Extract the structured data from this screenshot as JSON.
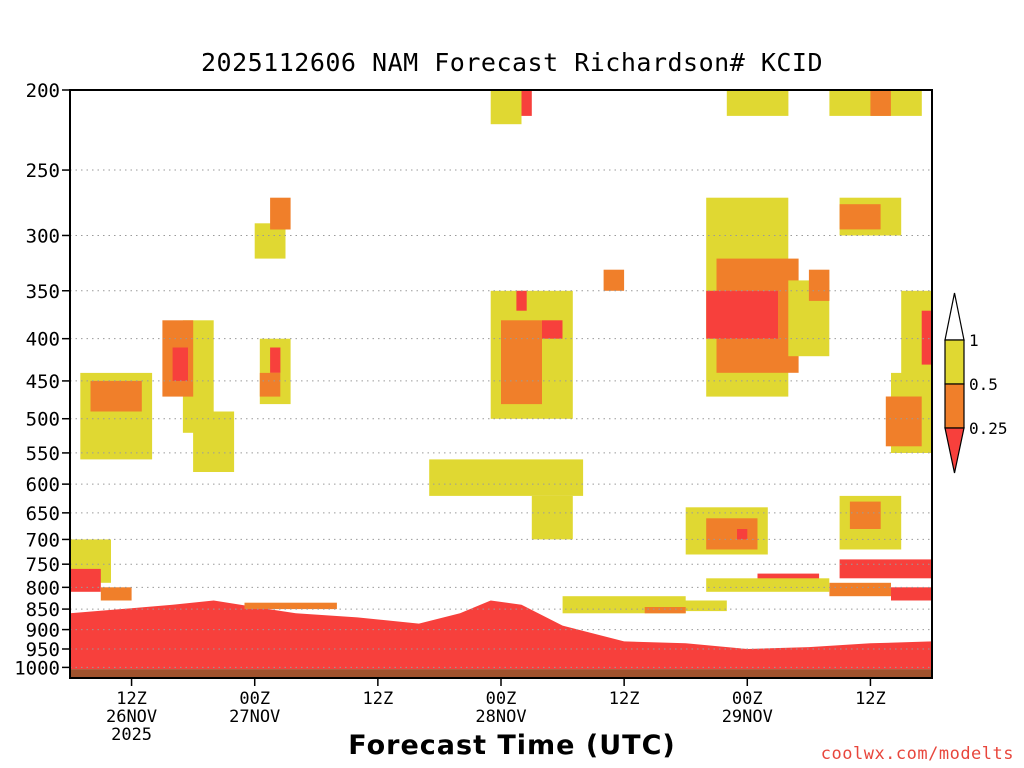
{
  "chart_data": {
    "type": "heatmap",
    "title": "2025112606 NAM Forecast Richardson# KCID",
    "xlabel": "Forecast Time (UTC)",
    "ylabel": "",
    "y_axis": {
      "units": "hPa",
      "scale": "log",
      "range": [
        1030,
        200
      ],
      "ticks": [
        200,
        250,
        300,
        350,
        400,
        450,
        500,
        550,
        600,
        650,
        700,
        750,
        800,
        850,
        900,
        950,
        1000
      ]
    },
    "x_axis": {
      "units": "forecast hour",
      "range": [
        0,
        84
      ],
      "ticks": [
        {
          "hour": 6,
          "lines": [
            "12Z",
            "26NOV",
            "2025"
          ]
        },
        {
          "hour": 18,
          "lines": [
            "00Z",
            "27NOV"
          ]
        },
        {
          "hour": 30,
          "lines": [
            "12Z"
          ]
        },
        {
          "hour": 42,
          "lines": [
            "00Z",
            "28NOV"
          ]
        },
        {
          "hour": 54,
          "lines": [
            "12Z"
          ]
        },
        {
          "hour": 66,
          "lines": [
            "00Z",
            "29NOV"
          ]
        },
        {
          "hour": 78,
          "lines": [
            "12Z"
          ]
        }
      ]
    },
    "legend": {
      "placement": "right",
      "labels": [
        "1",
        "0.5",
        "0.25"
      ],
      "bins": [
        {
          "range": "0.5 to 1",
          "color": "#e0d832"
        },
        {
          "range": "0.25 to 0.5",
          "color": "#f07f2a"
        },
        {
          "range": "< 0.25",
          "color": "#f7403c"
        }
      ]
    },
    "colors": {
      "low": "#f7403c",
      "mid": "#f07f2a",
      "high": "#e0d832",
      "ground": "#a0522d"
    },
    "regions": [
      {
        "band": "red",
        "hours": [
          0,
          84
        ],
        "p_top_by_hour": [
          [
            0,
            860
          ],
          [
            10,
            840
          ],
          [
            14,
            830
          ],
          [
            18,
            845
          ],
          [
            22,
            860
          ],
          [
            28,
            870
          ],
          [
            34,
            885
          ],
          [
            38,
            860
          ],
          [
            41,
            830
          ],
          [
            44,
            840
          ],
          [
            48,
            890
          ],
          [
            54,
            930
          ],
          [
            60,
            935
          ],
          [
            66,
            950
          ],
          [
            72,
            945
          ],
          [
            78,
            935
          ],
          [
            84,
            930
          ]
        ],
        "p_bottom": 1005
      },
      {
        "band": "ground",
        "hours": [
          0,
          84
        ],
        "p_top": 1005,
        "p_bottom": 1030
      },
      {
        "band": "yellow",
        "hours": [
          11,
          14
        ],
        "p": [
          380,
          520
        ]
      },
      {
        "band": "orange",
        "hours": [
          9,
          12
        ],
        "p": [
          380,
          470
        ]
      },
      {
        "band": "red",
        "hours": [
          10,
          11.5
        ],
        "p": [
          410,
          450
        ]
      },
      {
        "band": "yellow",
        "hours": [
          1,
          8
        ],
        "p": [
          440,
          560
        ]
      },
      {
        "band": "orange",
        "hours": [
          2,
          7
        ],
        "p": [
          450,
          490
        ]
      },
      {
        "band": "yellow",
        "hours": [
          12,
          16
        ],
        "p": [
          490,
          580
        ]
      },
      {
        "band": "yellow",
        "hours": [
          18,
          21
        ],
        "p": [
          290,
          320
        ]
      },
      {
        "band": "orange",
        "hours": [
          19.5,
          21.5
        ],
        "p": [
          270,
          295
        ]
      },
      {
        "band": "yellow",
        "hours": [
          18.5,
          21.5
        ],
        "p": [
          400,
          480
        ]
      },
      {
        "band": "orange",
        "hours": [
          18.5,
          20.5
        ],
        "p": [
          440,
          470
        ]
      },
      {
        "band": "red",
        "hours": [
          19.5,
          20.5
        ],
        "p": [
          410,
          440
        ]
      },
      {
        "band": "yellow",
        "hours": [
          35,
          50
        ],
        "p": [
          560,
          620
        ]
      },
      {
        "band": "yellow",
        "hours": [
          45,
          49
        ],
        "p": [
          620,
          700
        ]
      },
      {
        "band": "yellow",
        "hours": [
          41,
          49
        ],
        "p": [
          350,
          500
        ]
      },
      {
        "band": "orange",
        "hours": [
          42,
          46
        ],
        "p": [
          380,
          480
        ]
      },
      {
        "band": "red",
        "hours": [
          46,
          48
        ],
        "p": [
          380,
          400
        ]
      },
      {
        "band": "red",
        "hours": [
          43.5,
          44.5
        ],
        "p": [
          350,
          370
        ]
      },
      {
        "band": "orange",
        "hours": [
          42.5,
          44
        ],
        "p": [
          200,
          215
        ]
      },
      {
        "band": "red",
        "hours": [
          44,
          45
        ],
        "p": [
          200,
          215
        ]
      },
      {
        "band": "yellow",
        "hours": [
          41,
          44
        ],
        "p": [
          200,
          220
        ]
      },
      {
        "band": "yellow",
        "hours": [
          62,
          70
        ],
        "p": [
          270,
          470
        ]
      },
      {
        "band": "orange",
        "hours": [
          63,
          71
        ],
        "p": [
          320,
          440
        ]
      },
      {
        "band": "red",
        "hours": [
          62,
          69
        ],
        "p": [
          350,
          400
        ]
      },
      {
        "band": "yellow",
        "hours": [
          70,
          74
        ],
        "p": [
          340,
          420
        ]
      },
      {
        "band": "orange",
        "hours": [
          72,
          74
        ],
        "p": [
          330,
          360
        ]
      },
      {
        "band": "yellow",
        "hours": [
          64,
          70
        ],
        "p": [
          200,
          215
        ]
      },
      {
        "band": "yellow",
        "hours": [
          74,
          83
        ],
        "p": [
          200,
          215
        ]
      },
      {
        "band": "orange",
        "hours": [
          78,
          80
        ],
        "p": [
          200,
          215
        ]
      },
      {
        "band": "yellow",
        "hours": [
          75,
          81
        ],
        "p": [
          270,
          300
        ]
      },
      {
        "band": "orange",
        "hours": [
          75,
          79
        ],
        "p": [
          275,
          295
        ]
      },
      {
        "band": "orange",
        "hours": [
          52,
          54
        ],
        "p": [
          330,
          350
        ]
      },
      {
        "band": "yellow",
        "hours": [
          60,
          68
        ],
        "p": [
          640,
          730
        ]
      },
      {
        "band": "orange",
        "hours": [
          62,
          67
        ],
        "p": [
          660,
          720
        ]
      },
      {
        "band": "red",
        "hours": [
          65,
          66
        ],
        "p": [
          680,
          700
        ]
      },
      {
        "band": "yellow",
        "hours": [
          80,
          84
        ],
        "p": [
          440,
          550
        ]
      },
      {
        "band": "orange",
        "hours": [
          79.5,
          83
        ],
        "p": [
          470,
          540
        ]
      },
      {
        "band": "yellow",
        "hours": [
          81,
          84
        ],
        "p": [
          350,
          450
        ]
      },
      {
        "band": "red",
        "hours": [
          83,
          84
        ],
        "p": [
          370,
          430
        ]
      },
      {
        "band": "red",
        "hours": [
          75,
          84
        ],
        "p": [
          740,
          780
        ]
      },
      {
        "band": "red",
        "hours": [
          80,
          84
        ],
        "p": [
          800,
          830
        ]
      },
      {
        "band": "orange",
        "hours": [
          74,
          80
        ],
        "p": [
          790,
          820
        ]
      },
      {
        "band": "yellow",
        "hours": [
          75,
          81
        ],
        "p": [
          620,
          720
        ]
      },
      {
        "band": "orange",
        "hours": [
          76,
          79
        ],
        "p": [
          630,
          680
        ]
      },
      {
        "band": "red",
        "hours": [
          67,
          73
        ],
        "p": [
          770,
          790
        ]
      },
      {
        "band": "yellow",
        "hours": [
          62,
          74
        ],
        "p": [
          780,
          810
        ]
      },
      {
        "band": "yellow",
        "hours": [
          48,
          60
        ],
        "p": [
          820,
          860
        ]
      },
      {
        "band": "yellow",
        "hours": [
          55,
          64
        ],
        "p": [
          830,
          855
        ]
      },
      {
        "band": "orange",
        "hours": [
          56,
          60
        ],
        "p": [
          845,
          860
        ]
      },
      {
        "band": "yellow",
        "hours": [
          0,
          4
        ],
        "p": [
          700,
          790
        ]
      },
      {
        "band": "red",
        "hours": [
          0,
          3
        ],
        "p": [
          760,
          810
        ]
      },
      {
        "band": "orange",
        "hours": [
          3,
          6
        ],
        "p": [
          800,
          830
        ]
      },
      {
        "band": "orange",
        "hours": [
          17,
          26
        ],
        "p": [
          835,
          850
        ]
      }
    ]
  }
}
